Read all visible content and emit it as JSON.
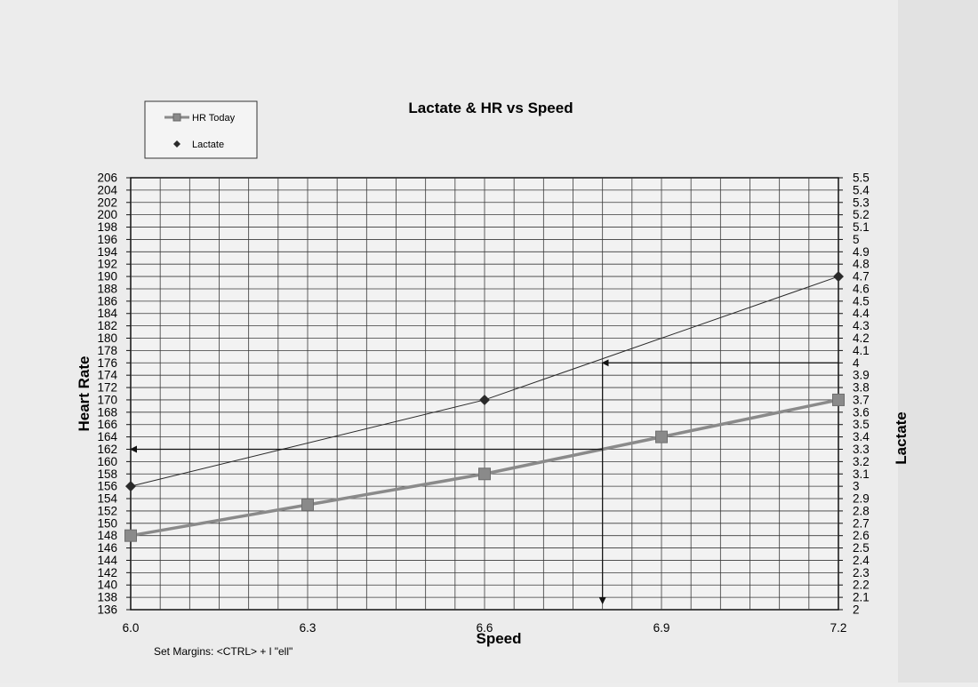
{
  "chart_data": {
    "type": "line",
    "title": "Lactate & HR vs Speed",
    "xlabel": "Speed",
    "ylabel_left": "Heart Rate",
    "ylabel_right": "Lactate",
    "x_ticks": [
      "6.0",
      "6.3",
      "6.6",
      "6.9",
      "7.2"
    ],
    "xlim": [
      6.0,
      7.2
    ],
    "ylim_left": [
      136,
      206
    ],
    "ylim_right": [
      2.0,
      5.5
    ],
    "y_left_ticks": [
      "136",
      "138",
      "140",
      "142",
      "144",
      "146",
      "148",
      "150",
      "152",
      "154",
      "156",
      "158",
      "160",
      "162",
      "164",
      "166",
      "168",
      "170",
      "172",
      "174",
      "176",
      "178",
      "180",
      "182",
      "184",
      "186",
      "188",
      "190",
      "192",
      "194",
      "196",
      "198",
      "200",
      "202",
      "204",
      "206"
    ],
    "y_right_ticks": [
      "2",
      "2.1",
      "2.2",
      "2.3",
      "2.4",
      "2.5",
      "2.6",
      "2.7",
      "2.8",
      "2.9",
      "3",
      "3.1",
      "3.2",
      "3.3",
      "3.4",
      "3.5",
      "3.6",
      "3.7",
      "3.8",
      "3.9",
      "4",
      "4.1",
      "4.2",
      "4.3",
      "4.4",
      "4.5",
      "4.6",
      "4.7",
      "4.8",
      "4.9",
      "5",
      "5.1",
      "5.2",
      "5.3",
      "5.4",
      "5.5"
    ],
    "grid": true,
    "legend": "top-left",
    "series": [
      {
        "name": "HR Today",
        "axis": "left",
        "marker": "square",
        "color": "#8a8a8a",
        "x": [
          6.0,
          6.3,
          6.6,
          6.9,
          7.2
        ],
        "y": [
          148,
          153,
          158,
          164,
          170
        ]
      },
      {
        "name": "Lactate",
        "axis": "right",
        "marker": "diamond",
        "color": "#2a2a2a",
        "x": [
          6.0,
          6.6,
          7.2
        ],
        "y": [
          3.0,
          3.7,
          4.7
        ]
      }
    ],
    "annotation_arrows": [
      {
        "kind": "horizontal",
        "from_x": 7.2,
        "to_x": 6.8,
        "at_lactate": 4.0
      },
      {
        "kind": "vertical",
        "at_x": 6.8,
        "from_lactate": 4.0,
        "to_hr": 137
      },
      {
        "kind": "horizontal",
        "from_x": 6.8,
        "to_x": 6.0,
        "at_hr": 162
      }
    ]
  },
  "footer_note": "Set Margins: <CTRL> + l \"ell\""
}
